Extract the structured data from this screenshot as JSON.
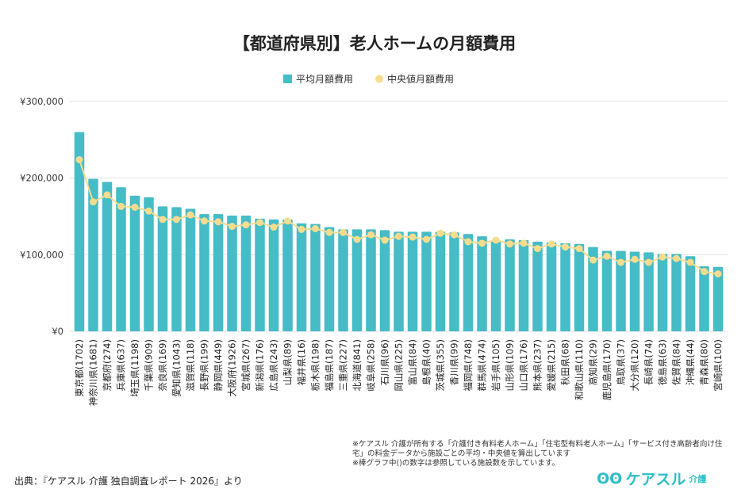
{
  "chart_data": {
    "type": "bar",
    "title": "【都道府県別】老人ホームの月額費用",
    "legend_position": "top",
    "grid": true,
    "ylim": [
      0,
      300000
    ],
    "yticks": [
      0,
      100000,
      200000,
      300000
    ],
    "ytick_labels": [
      "¥0",
      "¥100,000",
      "¥200,000",
      "¥300,000"
    ],
    "categories": [
      "東京都(1702)",
      "神奈川県(1681)",
      "京都府(274)",
      "兵庫県(637)",
      "埼玉県(1198)",
      "千葉県(909)",
      "奈良県(169)",
      "愛知県(1043)",
      "滋賀県(118)",
      "長野県(199)",
      "静岡県(449)",
      "大阪府(1926)",
      "宮城県(267)",
      "新潟県(176)",
      "広島県(243)",
      "山梨県(89)",
      "福井県(16)",
      "栃木県(198)",
      "福島県(187)",
      "三重県(227)",
      "北海道(841)",
      "岐阜県(258)",
      "石川県(96)",
      "岡山県(225)",
      "富山県(84)",
      "島根県(40)",
      "茨城県(355)",
      "香川県(99)",
      "福岡県(748)",
      "群馬県(474)",
      "岩手県(105)",
      "山形県(109)",
      "山口県(176)",
      "熊本県(237)",
      "愛媛県(215)",
      "秋田県(68)",
      "和歌山県(110)",
      "高知県(29)",
      "鹿児島県(170)",
      "鳥取県(37)",
      "大分県(120)",
      "長崎県(74)",
      "徳島県(63)",
      "佐賀県(84)",
      "沖縄県(44)",
      "青森県(80)",
      "宮崎県(100)"
    ],
    "series": [
      {
        "name": "平均月額費用",
        "type": "bar",
        "color": "#45bcc6",
        "values": [
          260000,
          199000,
          195000,
          188000,
          177000,
          175000,
          163000,
          162000,
          160000,
          153000,
          153000,
          151000,
          151000,
          147000,
          146000,
          146000,
          141000,
          140000,
          136000,
          133000,
          133000,
          133000,
          132000,
          130000,
          130000,
          130000,
          130000,
          129000,
          127000,
          124000,
          119000,
          120000,
          119000,
          117000,
          116000,
          115000,
          114000,
          110000,
          105000,
          105000,
          104000,
          103000,
          101000,
          101000,
          98000,
          85000,
          84000
        ]
      },
      {
        "name": "中央値月額費用",
        "type": "line",
        "color": "#f6dc8f",
        "values": [
          224000,
          169000,
          178000,
          163000,
          162000,
          157000,
          146000,
          146000,
          152000,
          144000,
          143000,
          137000,
          139000,
          142000,
          136000,
          144000,
          133000,
          134000,
          129000,
          129000,
          120000,
          126000,
          119000,
          124000,
          123000,
          120000,
          128000,
          126000,
          117000,
          115000,
          119000,
          114000,
          115000,
          108000,
          114000,
          110000,
          108000,
          93000,
          98000,
          90000,
          94000,
          90000,
          97000,
          95000,
          90000,
          78000,
          75000
        ]
      }
    ]
  },
  "notes": [
    "※ケアスル 介護が所有する「介護付き有料老人ホーム」「住宅型有料老人ホーム」「サービス付き高齢者向け住宅」の料金データから施設ごとの平均・中央値を算出しています",
    "※棒グラフ中()の数字は参照している施設数を示しています。"
  ],
  "source": "出典：『ケアスル 介護 独自調査レポート 2026』より",
  "logo": {
    "text": "ケアスル",
    "sub": "介護"
  }
}
